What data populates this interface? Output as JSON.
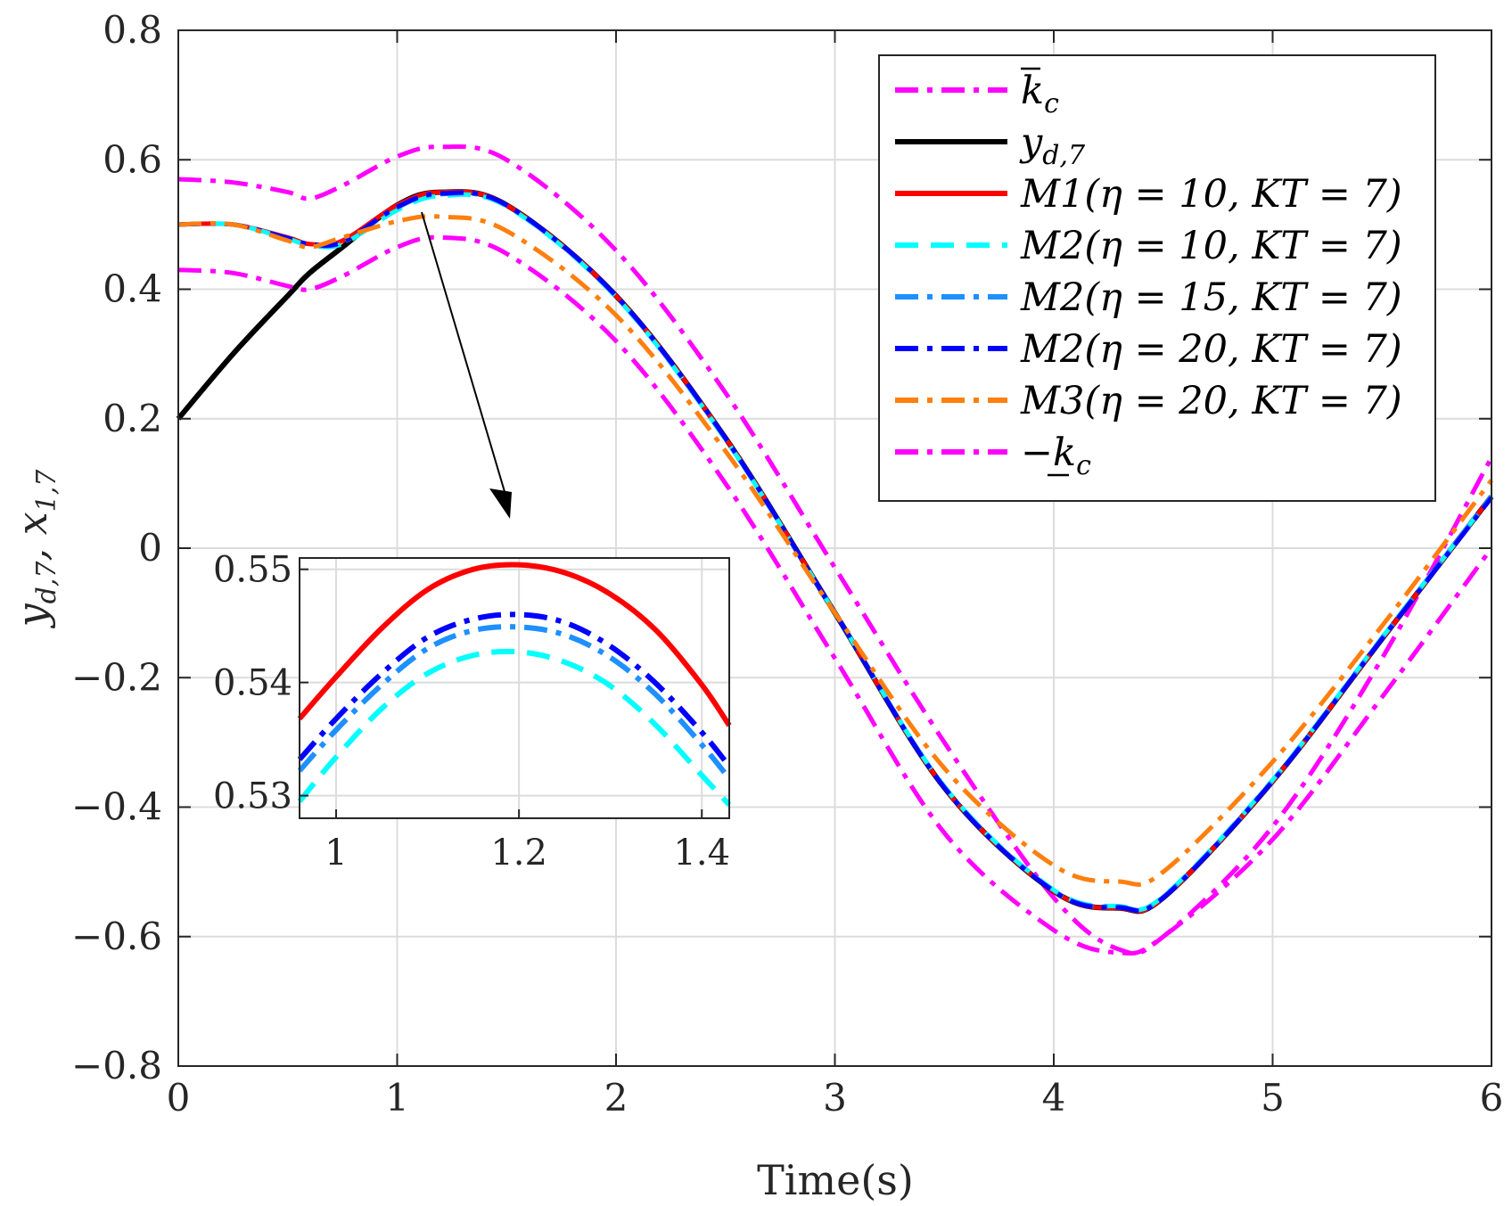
{
  "chart_data": {
    "type": "line",
    "title": "",
    "xlabel": "Time(s)",
    "ylabel": "y_{d,7}, x_{1,7}",
    "xlim": [
      0,
      6
    ],
    "ylim": [
      -0.8,
      0.8
    ],
    "grid": true,
    "x_ticks": [
      "0",
      "1",
      "2",
      "3",
      "4",
      "5",
      "6"
    ],
    "y_ticks": [
      "0.8",
      "0.6",
      "0.4",
      "0.2",
      "0",
      "−0.2",
      "−0.4",
      "−0.6",
      "−0.8"
    ],
    "legend_position": "top-right",
    "x": [
      0,
      0.25,
      0.5,
      0.6,
      0.75,
      1,
      1.2,
      1.5,
      2,
      2.5,
      3,
      3.5,
      4,
      4.3,
      4.5,
      5,
      5.5,
      6
    ],
    "series": [
      {
        "name": "k̄_c",
        "label_italic": "k",
        "label_sub": "c",
        "kind": "upper_bound",
        "color": "#ff00ff",
        "dash": "dashdot",
        "values": [
          0.57,
          0.565,
          0.55,
          0.54,
          0.56,
          0.605,
          0.62,
          0.6,
          0.46,
          0.24,
          -0.03,
          -0.3,
          -0.54,
          -0.62,
          -0.6,
          -0.43,
          -0.17,
          0.14
        ]
      },
      {
        "name": "y_{d,7}",
        "label_italic": "y",
        "label_sub": "d,7",
        "kind": "plain",
        "color": "#000000",
        "dash": "solid",
        "values": [
          0.2,
          0.3,
          0.39,
          0.425,
          0.465,
          0.53,
          0.55,
          0.53,
          0.39,
          0.17,
          -0.1,
          -0.37,
          -0.53,
          -0.556,
          -0.54,
          -0.36,
          -0.14,
          0.08
        ]
      },
      {
        "name": "M1(η = 10, KT = 7)",
        "label_text": "M1(η = 10, KT = 7)",
        "kind": "plain",
        "color": "#ff0000",
        "dash": "solid",
        "values": [
          0.5,
          0.5,
          0.48,
          0.47,
          0.475,
          0.53,
          0.55,
          0.53,
          0.39,
          0.17,
          -0.1,
          -0.37,
          -0.53,
          -0.556,
          -0.54,
          -0.36,
          -0.14,
          0.08
        ]
      },
      {
        "name": "M2(η = 10, KT = 7)",
        "label_text": "M2(η = 10, KT = 7)",
        "kind": "plain",
        "color": "#00ffff",
        "dash": "dashed",
        "values": [
          0.5,
          0.5,
          0.478,
          0.468,
          0.47,
          0.522,
          0.544,
          0.528,
          0.388,
          0.168,
          -0.1,
          -0.368,
          -0.528,
          -0.553,
          -0.538,
          -0.358,
          -0.138,
          0.08
        ]
      },
      {
        "name": "M2(η = 15, KT = 7)",
        "label_text": "M2(η = 15, KT = 7)",
        "kind": "plain",
        "color": "#1e90ff",
        "dash": "dashdot",
        "values": [
          0.5,
          0.5,
          0.479,
          0.469,
          0.472,
          0.526,
          0.547,
          0.529,
          0.389,
          0.169,
          -0.1,
          -0.369,
          -0.529,
          -0.554,
          -0.539,
          -0.359,
          -0.139,
          0.08
        ]
      },
      {
        "name": "M2(η = 20, KT = 7)",
        "label_text": "M2(η = 20, KT = 7)",
        "kind": "plain",
        "color": "#0000ff",
        "dash": "dashdot",
        "values": [
          0.5,
          0.5,
          0.479,
          0.47,
          0.473,
          0.527,
          0.548,
          0.53,
          0.39,
          0.17,
          -0.1,
          -0.37,
          -0.53,
          -0.555,
          -0.54,
          -0.36,
          -0.14,
          0.078
        ]
      },
      {
        "name": "M3(η = 20, KT = 7)",
        "label_text": "M3(η = 20, KT = 7)",
        "kind": "plain",
        "color": "#ff7f0e",
        "dash": "dashdot",
        "values": [
          0.5,
          0.5,
          0.475,
          0.465,
          0.48,
          0.505,
          0.512,
          0.49,
          0.36,
          0.15,
          -0.1,
          -0.34,
          -0.49,
          -0.515,
          -0.5,
          -0.33,
          -0.12,
          0.105
        ]
      },
      {
        "name": "−k_c",
        "label_italic": "k",
        "label_sub": "c",
        "kind": "lower_bound",
        "color": "#ff00ff",
        "dash": "dashdot",
        "values": [
          0.43,
          0.425,
          0.405,
          0.4,
          0.42,
          0.465,
          0.48,
          0.455,
          0.32,
          0.1,
          -0.17,
          -0.44,
          -0.59,
          -0.625,
          -0.6,
          -0.45,
          -0.23,
          0.0
        ]
      }
    ],
    "inset": {
      "xlim": [
        0.96,
        1.43
      ],
      "ylim": [
        0.528,
        0.551
      ],
      "x_ticks": [
        "1",
        "1.2",
        "1.4"
      ],
      "y_ticks": [
        "0.55",
        "0.54",
        "0.53"
      ],
      "x": [
        0.96,
        1.0,
        1.05,
        1.1,
        1.15,
        1.2,
        1.25,
        1.3,
        1.35,
        1.4,
        1.43
      ],
      "series": [
        {
          "name": "M1(η = 10, KT = 7)",
          "color": "#ff0000",
          "dash": "solid",
          "values": [
            0.5368,
            0.5405,
            0.5448,
            0.5482,
            0.55,
            0.5504,
            0.5497,
            0.5478,
            0.5446,
            0.5398,
            0.5362
          ]
        },
        {
          "name": "M2(η = 10, KT = 7)",
          "color": "#00ffff",
          "dash": "dashed",
          "values": [
            0.5295,
            0.5334,
            0.5377,
            0.5408,
            0.5424,
            0.5427,
            0.5418,
            0.5397,
            0.5362,
            0.5318,
            0.5292
          ]
        },
        {
          "name": "M2(η = 15, KT = 7)",
          "color": "#1e90ff",
          "dash": "dashdot",
          "values": [
            0.5322,
            0.5358,
            0.5398,
            0.543,
            0.5446,
            0.5449,
            0.5442,
            0.5422,
            0.5389,
            0.5345,
            0.5315
          ]
        },
        {
          "name": "M2(η = 20, KT = 7)",
          "color": "#0000ff",
          "dash": "dashdot",
          "values": [
            0.5332,
            0.5368,
            0.5408,
            0.544,
            0.5456,
            0.546,
            0.5453,
            0.5432,
            0.5399,
            0.5356,
            0.5326
          ]
        }
      ]
    }
  }
}
